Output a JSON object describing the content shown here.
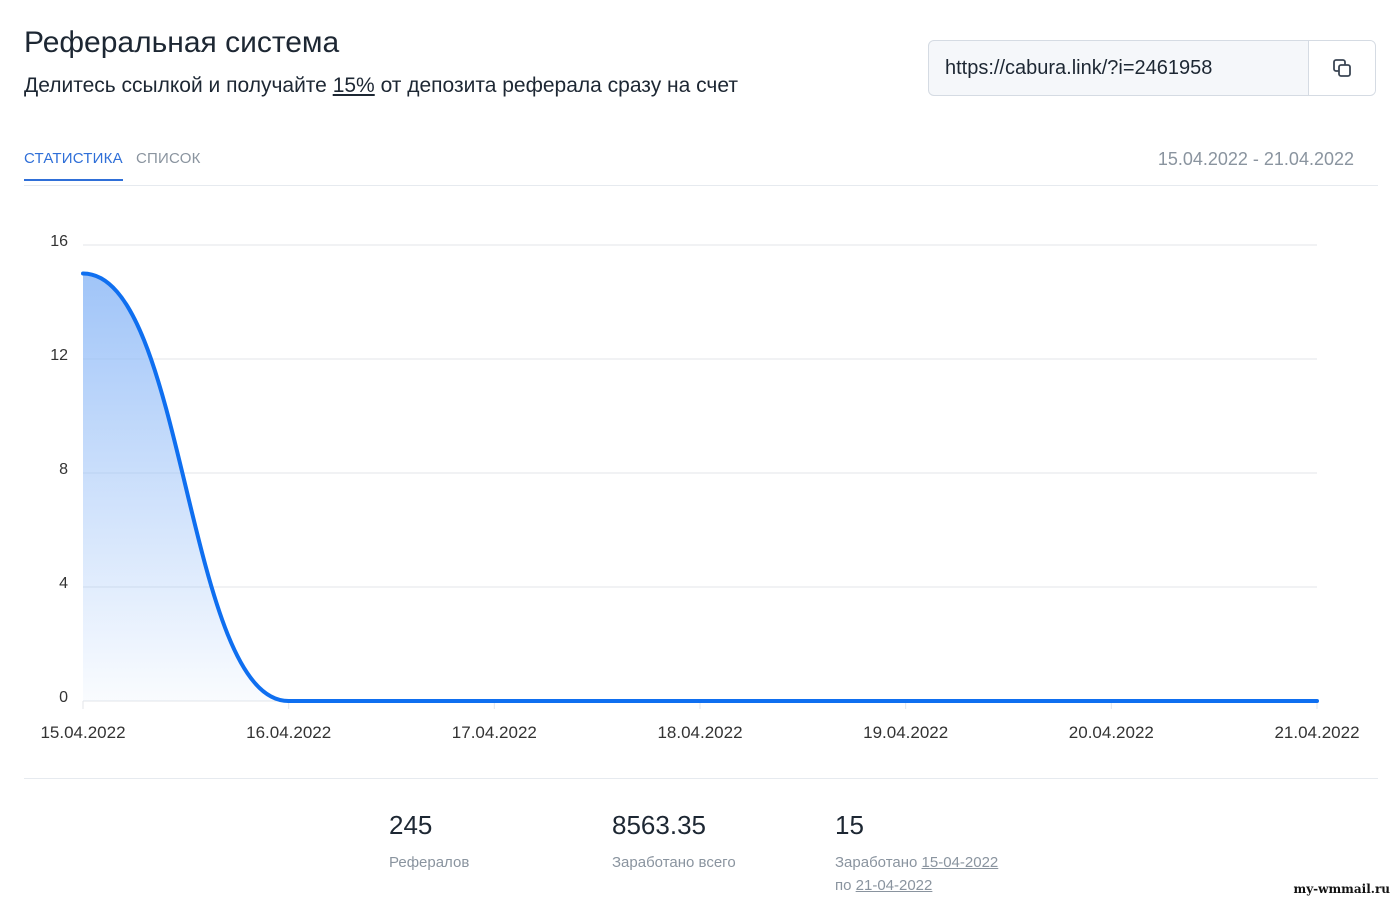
{
  "header": {
    "title": "Реферальная система",
    "subtitle_before": "Делитесь ссылкой и получайте ",
    "subtitle_percent": "15%",
    "subtitle_after": " от депозита реферала сразу на счет"
  },
  "referral_link": {
    "value": "https://cabura.link/?i=2461958",
    "copy_icon": "copy-icon"
  },
  "tabs": [
    {
      "label": "СТАТИСТИКА",
      "active": true
    },
    {
      "label": "СПИСОК",
      "active": false
    }
  ],
  "date_range": "15.04.2022 - 21.04.2022",
  "chart_data": {
    "type": "area",
    "x": [
      "15.04.2022",
      "16.04.2022",
      "17.04.2022",
      "18.04.2022",
      "19.04.2022",
      "20.04.2022",
      "21.04.2022"
    ],
    "series": [
      {
        "values": [
          15,
          0,
          0,
          0,
          0,
          0,
          0
        ]
      }
    ],
    "y_ticks": [
      "0",
      "4",
      "8",
      "12",
      "16"
    ],
    "ylim": [
      0,
      16
    ],
    "grid": true,
    "colors": {
      "line": "#0f6ff0",
      "fill": "#8fbaf7",
      "grid": "#e3e6ea",
      "axis_text": "#333333"
    }
  },
  "stats": {
    "referrals_value": "245",
    "referrals_label": "Рефералов",
    "earned_total_value": "8563.35",
    "earned_total_label": "Заработано всего",
    "earned_period_value": "15",
    "earned_period_label_from": "Заработано ",
    "earned_period_date_from": "15-04-2022",
    "earned_period_label_to": "по ",
    "earned_period_date_to": "21-04-2022"
  },
  "watermark": "my-wmmail.ru"
}
